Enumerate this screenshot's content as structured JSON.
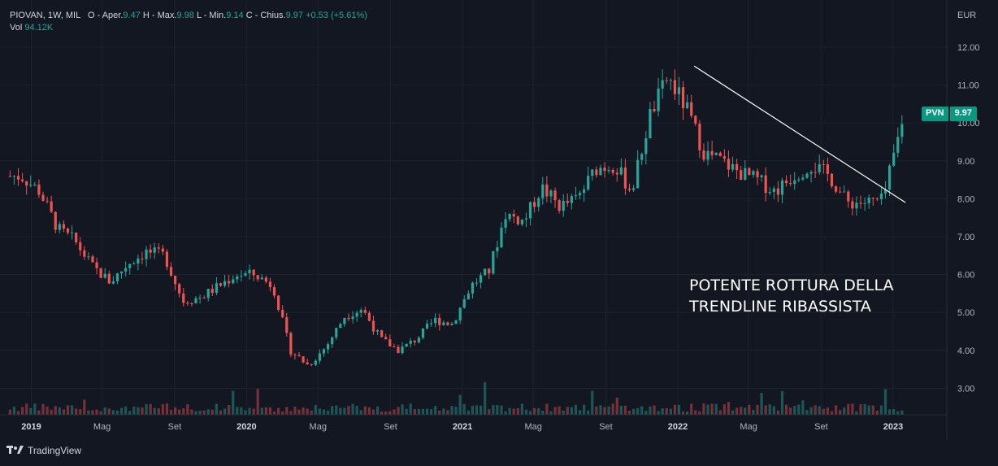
{
  "header": {
    "symbol": "PIOVAN, 1W, MIL",
    "open_label": "O - Aper.",
    "open": "9.47",
    "high_label": "H - Max.",
    "high": "9.98",
    "low_label": "L - Min.",
    "low": "9.14",
    "close_label": "C - Chius.",
    "close": "9.97",
    "change": "+0.53 (+5.61%)",
    "vol_label": "Vol",
    "vol": "94.12K"
  },
  "axis": {
    "currency": "EUR",
    "y_ticks": [
      "12.00",
      "11.00",
      "10.00",
      "9.00",
      "8.00",
      "7.00",
      "6.00",
      "5.00",
      "4.00",
      "3.00"
    ],
    "x_ticks": [
      "2019",
      "Mag",
      "Set",
      "2020",
      "Mag",
      "Set",
      "2021",
      "Mag",
      "Set",
      "2022",
      "Mag",
      "Set",
      "2023"
    ]
  },
  "price_tag": {
    "symbol": "PVN",
    "value": "9.97"
  },
  "annotation": {
    "line1": "POTENTE ROTTURA DELLA",
    "line2": "TRENDLINE RIBASSISTA"
  },
  "brand": {
    "name": "TradingView"
  },
  "colors": {
    "up": "#26a69a",
    "down": "#ef5350",
    "bg": "#131722",
    "grid": "#1e222d"
  },
  "chart_data": {
    "type": "candlestick",
    "ylim": [
      2.3,
      12.6
    ],
    "anchor_prices": [
      [
        "2018-12",
        8.6
      ],
      [
        "2019-01",
        8.2
      ],
      [
        "2019-02",
        7.2
      ],
      [
        "2019-03",
        6.9
      ],
      [
        "2019-04",
        6.2
      ],
      [
        "2019-05",
        5.8
      ],
      [
        "2019-06",
        6.3
      ],
      [
        "2019-07",
        6.6
      ],
      [
        "2019-08",
        6.5
      ],
      [
        "2019-09",
        5.3
      ],
      [
        "2019-10",
        5.4
      ],
      [
        "2019-11",
        5.7
      ],
      [
        "2019-12",
        6.0
      ],
      [
        "2020-01",
        6.0
      ],
      [
        "2020-02",
        5.7
      ],
      [
        "2020-03",
        4.0
      ],
      [
        "2020-04",
        3.6
      ],
      [
        "2020-05",
        4.1
      ],
      [
        "2020-06",
        4.9
      ],
      [
        "2020-07",
        5.1
      ],
      [
        "2020-08",
        4.3
      ],
      [
        "2020-09",
        4.0
      ],
      [
        "2020-10",
        4.3
      ],
      [
        "2020-11",
        4.8
      ],
      [
        "2020-12",
        4.7
      ],
      [
        "2021-01",
        5.7
      ],
      [
        "2021-02",
        6.1
      ],
      [
        "2021-03",
        7.6
      ],
      [
        "2021-04",
        7.4
      ],
      [
        "2021-05",
        8.3
      ],
      [
        "2021-06",
        7.8
      ],
      [
        "2021-07",
        8.0
      ],
      [
        "2021-08",
        8.8
      ],
      [
        "2021-09",
        8.9
      ],
      [
        "2021-10",
        8.2
      ],
      [
        "2021-11",
        10.2
      ],
      [
        "2021-12",
        11.2
      ],
      [
        "2022-01",
        10.4
      ],
      [
        "2022-02",
        9.2
      ],
      [
        "2022-03",
        9.0
      ],
      [
        "2022-04",
        8.7
      ],
      [
        "2022-05",
        8.5
      ],
      [
        "2022-06",
        8.2
      ],
      [
        "2022-07",
        8.6
      ],
      [
        "2022-08",
        8.9
      ],
      [
        "2022-09",
        8.6
      ],
      [
        "2022-10",
        7.9
      ],
      [
        "2022-11",
        7.9
      ],
      [
        "2022-12",
        7.95
      ],
      [
        "2023-01",
        9.97
      ]
    ],
    "trendline": [
      [
        "2022-01",
        11.5
      ],
      [
        "2023-01",
        7.9
      ]
    ]
  }
}
